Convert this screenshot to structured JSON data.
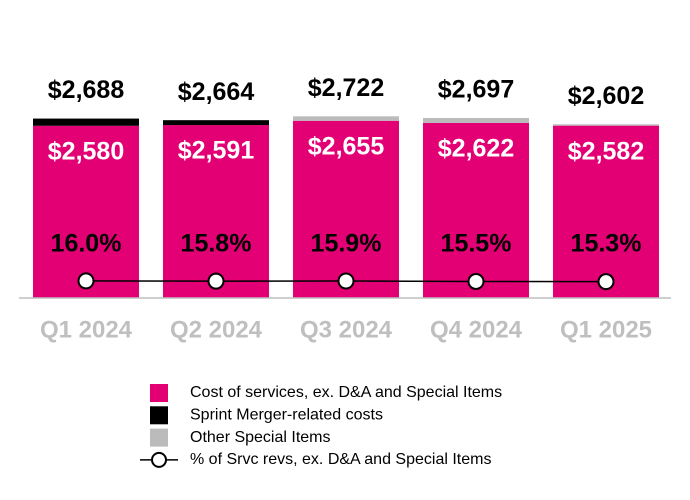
{
  "chart_data": {
    "type": "bar",
    "categories": [
      "Q1 2024",
      "Q2 2024",
      "Q3 2024",
      "Q4 2024",
      "Q1 2025"
    ],
    "ylim": [
      0,
      4000
    ],
    "y2lim": [
      0,
      250
    ],
    "series": [
      {
        "name": "Cost of services, ex. D&A and Special Items",
        "color": "#e20074",
        "values": [
          2580,
          2591,
          2655,
          2622,
          2582
        ],
        "value_labels": [
          "$2,580",
          "$2,591",
          "$2,655",
          "$2,622",
          "$2,582"
        ]
      },
      {
        "name": "Sprint Merger-related costs",
        "color": "#000000",
        "values": [
          108,
          73,
          0,
          0,
          0
        ]
      },
      {
        "name": "Other Special Items",
        "color": "#bbbbbb",
        "values": [
          0,
          0,
          67,
          75,
          20
        ]
      },
      {
        "name": "% of Srvc revs, ex. D&A and Special Items",
        "color": "#000000",
        "type": "line",
        "axis": "y2",
        "values": [
          16.0,
          15.8,
          15.9,
          15.5,
          15.3
        ],
        "value_labels": [
          "16.0%",
          "15.8%",
          "15.9%",
          "15.5%",
          "15.3%"
        ]
      }
    ],
    "totals": {
      "values": [
        2688,
        2664,
        2722,
        2697,
        2602
      ],
      "value_labels": [
        "$2,688",
        "$2,664",
        "$2,722",
        "$2,697",
        "$2,602"
      ]
    }
  }
}
